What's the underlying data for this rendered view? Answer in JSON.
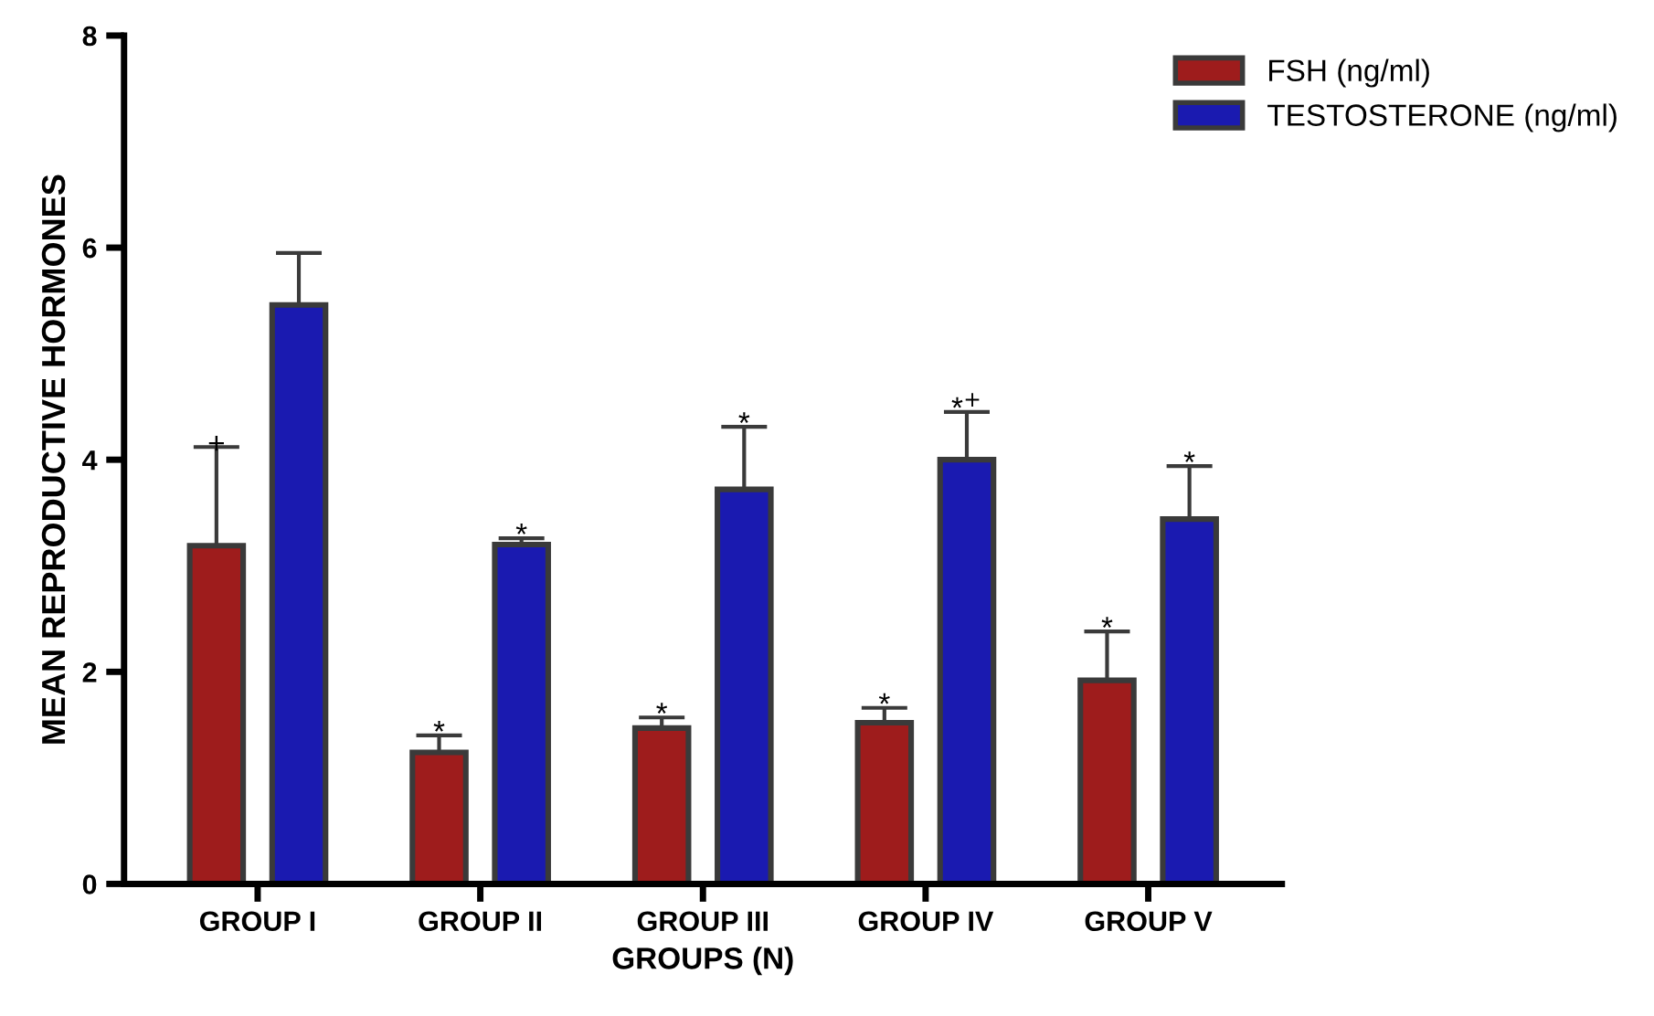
{
  "chart_data": {
    "type": "bar",
    "xlabel": "GROUPS (N)",
    "ylabel": "MEAN REPRODUCTIVE HORMONES",
    "categories": [
      "GROUP I",
      "GROUP II",
      "GROUP III",
      "GROUP IV",
      "GROUP V"
    ],
    "series": [
      {
        "name": "FSH (ng/ml)",
        "color": "#9e1c1c",
        "values": [
          3.19,
          1.24,
          1.47,
          1.52,
          1.92
        ],
        "errors": [
          [
            3.19,
            4.12
          ],
          [
            1.24,
            1.4
          ],
          [
            1.47,
            1.57
          ],
          [
            1.52,
            1.66
          ],
          [
            1.92,
            2.38
          ]
        ],
        "value_labels": [
          "+",
          "*",
          "*",
          "*",
          "*"
        ]
      },
      {
        "name": "TESTOSTERONE (ng/ml)",
        "color": "#1a1ab0",
        "values": [
          5.46,
          3.2,
          3.72,
          4.0,
          3.44
        ],
        "errors": [
          [
            5.46,
            5.95
          ],
          [
            3.2,
            3.26
          ],
          [
            3.72,
            4.31
          ],
          [
            4.0,
            4.45
          ],
          [
            3.44,
            3.94
          ]
        ],
        "value_labels": [
          null,
          "*",
          "*",
          "*$^{+}$",
          "*"
        ]
      }
    ],
    "ylim": [
      0,
      8
    ],
    "yticks": [
      0,
      2,
      4,
      6,
      8
    ],
    "grid": false,
    "legend": "top right"
  }
}
